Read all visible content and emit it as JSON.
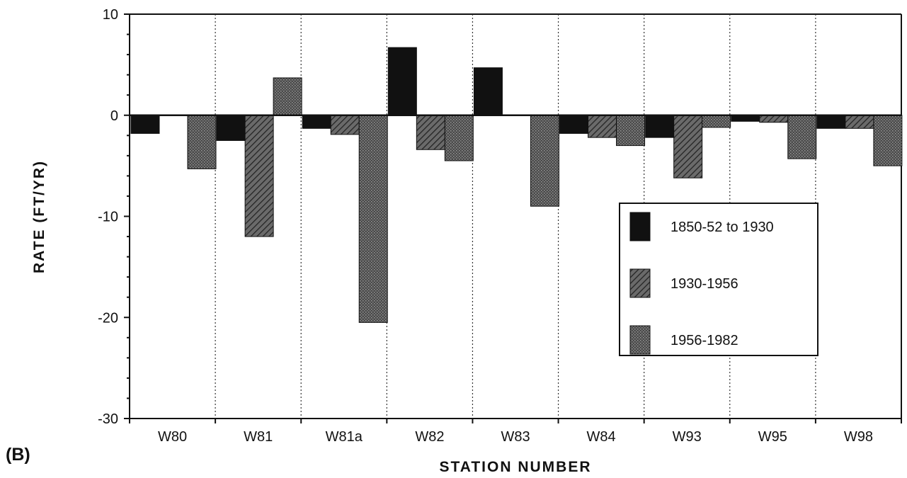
{
  "panel_label": "(B)",
  "chart_data": {
    "type": "bar",
    "xlabel": "STATION NUMBER",
    "ylabel": "RATE (FT/YR)",
    "ylim": [
      -30,
      10
    ],
    "yticks": [
      10,
      0,
      -10,
      -20,
      -30
    ],
    "grid": "vertical dotted separators between stations",
    "legend_position": "center-right",
    "categories": [
      "W80",
      "W81",
      "W81a",
      "W82",
      "W83",
      "W84",
      "W93",
      "W95",
      "W98"
    ],
    "series": [
      {
        "name": "1850-52 to 1930",
        "color": "#111111",
        "pattern": "solid",
        "values": [
          -1.8,
          -2.5,
          -1.3,
          6.7,
          4.7,
          -1.8,
          -2.2,
          -0.6,
          -1.3
        ]
      },
      {
        "name": "1930-1956",
        "color": "#444444",
        "pattern": "hatched",
        "values": [
          0,
          -12.0,
          -1.9,
          -3.4,
          0,
          -2.2,
          -6.2,
          -0.7,
          -1.3
        ]
      },
      {
        "name": "1956-1982",
        "color": "#555555",
        "pattern": "stipple",
        "values": [
          -5.3,
          3.7,
          -20.5,
          -4.5,
          -9.0,
          -3.0,
          -1.2,
          -4.3,
          -5.0
        ]
      }
    ]
  }
}
